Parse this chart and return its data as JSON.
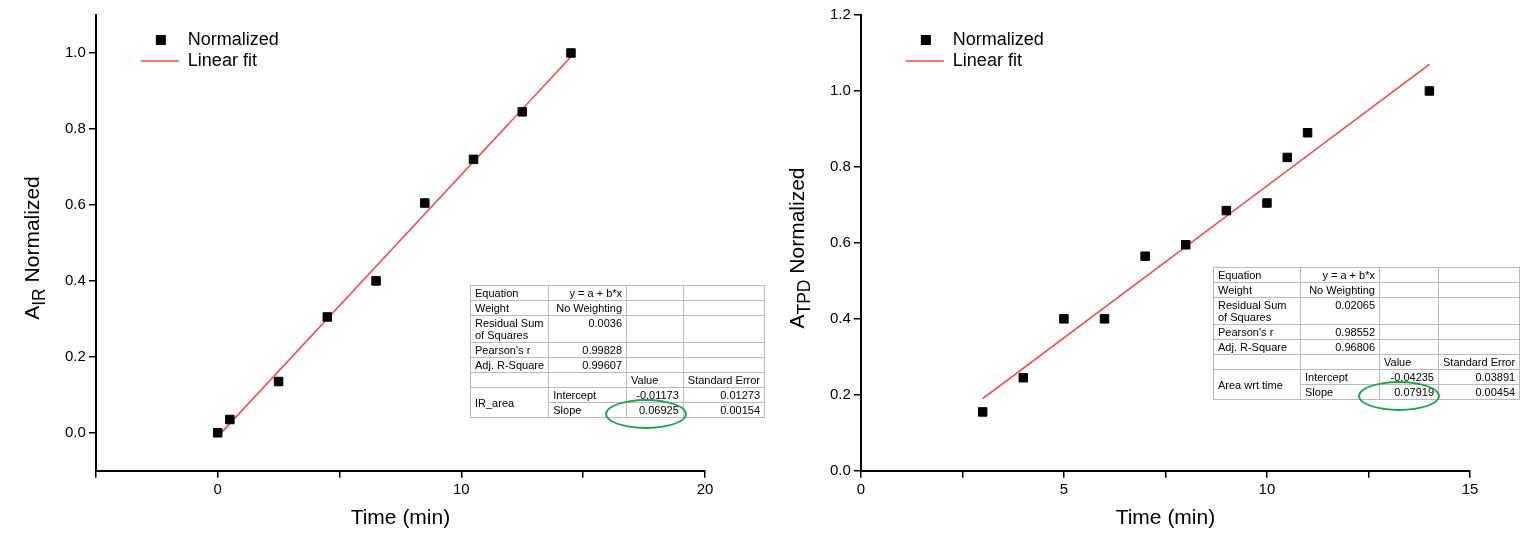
{
  "chart_data": [
    {
      "type": "scatter",
      "xlabel": "Time (min)",
      "ylabel": "A$_{IR}$ Normalized",
      "legend": "top left",
      "grid": false,
      "xlim": [
        -5,
        20
      ],
      "xticks": [
        {
          "value": -5,
          "label": null
        },
        0,
        {
          "value": 5,
          "label": null
        },
        10,
        {
          "value": 15,
          "label": null
        },
        20
      ],
      "ylim": [
        -0.1,
        1.1
      ],
      "yticks": [
        {
          "value": 0,
          "label": "0.0"
        },
        {
          "value": 0.2,
          "label": "0.2"
        },
        {
          "value": 0.4,
          "label": "0.4"
        },
        {
          "value": 0.6,
          "label": "0.6"
        },
        {
          "value": 0.8,
          "label": "0.8"
        },
        {
          "value": 1,
          "label": "1.0"
        }
      ],
      "series": [
        {
          "name": "Normalized",
          "marker": "square",
          "color": "#000000",
          "x": [
            0,
            0.5,
            2.5,
            4.5,
            6.5,
            8.5,
            10.5,
            12.5,
            14.5
          ],
          "values": [
            0,
            0.035,
            0.135,
            0.305,
            0.4,
            0.605,
            0.72,
            0.845,
            1.0
          ]
        },
        {
          "name": "Linear fit",
          "type": "line",
          "marker": "none",
          "color": "#ff4040",
          "x": [
            0,
            14.5
          ],
          "values": [
            -0.01,
            0.99
          ]
        }
      ],
      "annotations": [
        "Equation",
        "y = a + b*x",
        "Weight",
        "No Weighting",
        "Residual Sum of Squares",
        "0.0036",
        "Pearson's r",
        "0.99828",
        "Adj. R-Square",
        "0.99607",
        "Value",
        "Standard Error",
        "IR_area",
        "Intercept",
        "-0.01173",
        "0.01273",
        "Slope",
        "0.06925",
        "0.00154"
      ]
    },
    {
      "type": "scatter",
      "xlabel": "Time (min)",
      "ylabel": "A$_{TPD}$ Normalized",
      "legend": "top left",
      "grid": false,
      "xlim": [
        0,
        15
      ],
      "xticks": [
        0,
        {
          "value": 2.5,
          "label": null
        },
        5,
        {
          "value": 7.5,
          "label": null
        },
        10,
        {
          "value": 12.5,
          "label": null
        },
        15
      ],
      "ylim": [
        0,
        1.2
      ],
      "yticks": [
        {
          "value": 0,
          "label": "0.0"
        },
        {
          "value": 0.2,
          "label": "0.2"
        },
        {
          "value": 0.4,
          "label": "0.4"
        },
        {
          "value": 0.6,
          "label": "0.6"
        },
        {
          "value": 0.8,
          "label": "0.8"
        },
        {
          "value": 1,
          "label": "1.0"
        },
        {
          "value": 1.2,
          "label": "1.2"
        }
      ],
      "series": [
        {
          "name": "Normalized",
          "marker": "square",
          "color": "#000000",
          "x": [
            3,
            4,
            5,
            6,
            7,
            8,
            9,
            10,
            10.5,
            11,
            14
          ],
          "values": [
            0.155,
            0.245,
            0.4,
            0.4,
            0.565,
            0.595,
            0.685,
            0.705,
            0.825,
            0.89,
            1.0
          ]
        },
        {
          "name": "Linear fit",
          "type": "line",
          "marker": "none",
          "color": "#ff4040",
          "x": [
            3,
            14
          ],
          "values": [
            0.19,
            1.07
          ]
        }
      ],
      "annotations": [
        "Equation",
        "y = a + b*x",
        "Weight",
        "No Weighting",
        "Residual Sum of Squares",
        "0.02065",
        "Pearson's r",
        "0.98552",
        "Adj. R-Square",
        "0.96806",
        "Value",
        "Standard Error",
        "Area wrt time",
        "Intercept",
        "-0.04235",
        "0.03891",
        "Slope",
        "0.07919",
        "0.00454"
      ]
    }
  ]
}
